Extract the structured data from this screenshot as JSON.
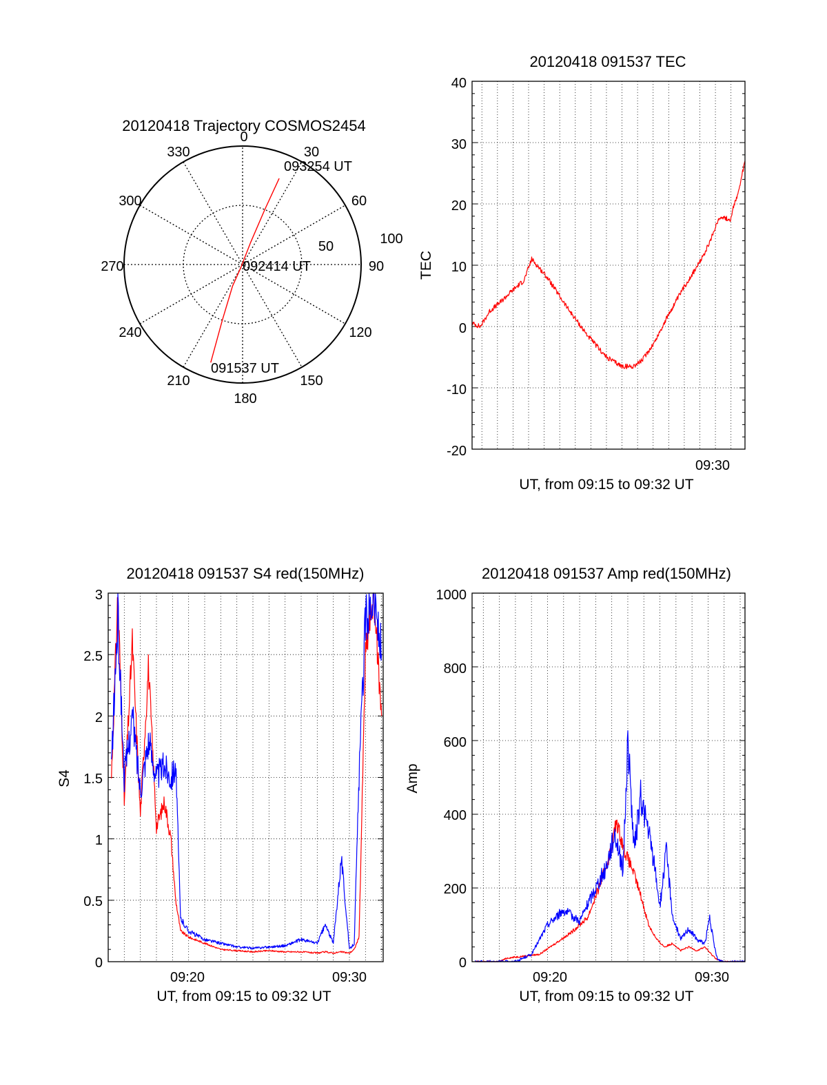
{
  "chart_data": [
    {
      "type": "polar",
      "title": "20120418 Trajectory COSMOS2454",
      "azimuth_labels": [
        "0",
        "30",
        "60",
        "90",
        "120",
        "150",
        "180",
        "210",
        "240",
        "270",
        "300",
        "330"
      ],
      "radial_labels": [
        "50",
        "100"
      ],
      "annotations": [
        "093254 UT",
        "092414 UT",
        "091537 UT"
      ],
      "trajectory_color": "#ff0000",
      "trajectory": [
        {
          "az": 198,
          "r": 87,
          "time": "091537 UT"
        },
        {
          "az": 200,
          "r": 50
        },
        {
          "az": 205,
          "r": 20
        },
        {
          "az": 210,
          "r": 3,
          "time": "092414 UT"
        },
        {
          "az": 20,
          "r": 20
        },
        {
          "az": 22,
          "r": 50
        },
        {
          "az": 23,
          "r": 79,
          "time": "093254 UT"
        }
      ]
    },
    {
      "type": "line",
      "title": "20120418 091537 TEC",
      "ylabel": "TEC",
      "xlabel": "UT, from 09:15 to 09:32 UT",
      "ylim": [
        -20,
        40
      ],
      "yticks": [
        "40",
        "30",
        "20",
        "10",
        "0",
        "-10",
        "-20"
      ],
      "xlim": [
        15.37,
        32.9
      ],
      "xtick_labels": [
        {
          "x": 30,
          "label": "09:30"
        }
      ],
      "series": [
        {
          "color": "#ff0000",
          "x": [
            15.4,
            15.9,
            16.5,
            17.2,
            18.0,
            18.7,
            19.2,
            20.2,
            21.5,
            22.8,
            24.0,
            25.0,
            25.7,
            26.3,
            27.1,
            28.0,
            29.0,
            30.0,
            30.6,
            30.9,
            31.1,
            31.4,
            31.8,
            32.0,
            32.2,
            32.5,
            32.9
          ],
          "y": [
            0.5,
            0.0,
            2.5,
            4.0,
            6.0,
            7.5,
            11.0,
            8.0,
            3.0,
            -1.5,
            -5.0,
            -6.5,
            -6.5,
            -5.5,
            -2.5,
            2.0,
            6.5,
            10.5,
            13.5,
            15.5,
            17.0,
            18.0,
            17.5,
            17.5,
            20.0,
            22.0,
            27.0
          ]
        }
      ]
    },
    {
      "type": "line",
      "title": "20120418 091537 S4 red(150MHz)",
      "ylabel": "S4",
      "xlabel": "UT, from 09:15 to 09:32 UT",
      "ylim": [
        0,
        3
      ],
      "yticks": [
        "3",
        "2.5",
        "2",
        "1.5",
        "1",
        "0.5",
        "0"
      ],
      "xlim": [
        15.0,
        32.1
      ],
      "xtick_labels": [
        {
          "x": 20,
          "label": "09:20"
        },
        {
          "x": 30,
          "label": "09:30"
        }
      ],
      "series": [
        {
          "color": "#ff0000",
          "x": [
            15.2,
            15.6,
            16.0,
            16.5,
            17.0,
            17.5,
            18.0,
            18.5,
            18.9,
            19.2,
            19.5,
            20.0,
            21.0,
            22.0,
            23.0,
            24.0,
            25.0,
            26.0,
            27.0,
            28.0,
            28.5,
            29.0,
            29.5,
            30.0,
            30.3,
            30.6,
            31.0,
            31.5,
            32.0
          ],
          "y": [
            1.5,
            3.0,
            1.3,
            2.6,
            1.2,
            2.4,
            1.1,
            1.3,
            1.0,
            0.5,
            0.25,
            0.2,
            0.15,
            0.1,
            0.09,
            0.08,
            0.09,
            0.08,
            0.08,
            0.07,
            0.08,
            0.07,
            0.08,
            0.07,
            0.1,
            0.2,
            2.5,
            3.0,
            2.0
          ]
        },
        {
          "color": "#0000ff",
          "x": [
            15.2,
            15.6,
            16.0,
            16.5,
            17.0,
            17.5,
            18.0,
            18.5,
            18.9,
            19.2,
            19.5,
            20.0,
            21.0,
            22.0,
            23.0,
            24.0,
            25.0,
            26.0,
            27.0,
            28.0,
            28.5,
            29.0,
            29.5,
            30.0,
            30.3,
            30.6,
            31.0,
            31.5,
            32.0
          ],
          "y": [
            1.6,
            2.8,
            1.5,
            2.0,
            1.4,
            1.8,
            1.5,
            1.6,
            1.5,
            1.6,
            0.35,
            0.25,
            0.18,
            0.15,
            0.12,
            0.11,
            0.12,
            0.13,
            0.18,
            0.15,
            0.3,
            0.15,
            0.85,
            0.1,
            0.15,
            1.5,
            2.8,
            3.0,
            2.5
          ]
        }
      ]
    },
    {
      "type": "line",
      "title": "20120418 091537 Amp red(150MHz)",
      "ylabel": "Amp",
      "xlabel": "UT, from 09:15 to 09:32 UT",
      "ylim": [
        0,
        1000
      ],
      "yticks": [
        "1000",
        "800",
        "600",
        "400",
        "200",
        "0"
      ],
      "xlim": [
        15.3,
        32.3
      ],
      "xtick_labels": [
        {
          "x": 20,
          "label": "09:20"
        },
        {
          "x": 30,
          "label": "09:30"
        }
      ],
      "series": [
        {
          "color": "#ff0000",
          "x": [
            15.5,
            17.0,
            17.5,
            18.5,
            19.5,
            20.5,
            21.5,
            22.5,
            23.2,
            23.8,
            24.3,
            24.8,
            25.3,
            25.8,
            26.3,
            26.8,
            27.3,
            27.8,
            28.3,
            28.8,
            29.3,
            29.8,
            30.2,
            30.6,
            31.0,
            32.3
          ],
          "y": [
            0,
            0,
            10,
            15,
            20,
            50,
            80,
            120,
            200,
            280,
            380,
            300,
            250,
            180,
            100,
            60,
            40,
            50,
            30,
            40,
            30,
            40,
            20,
            5,
            0,
            0
          ]
        },
        {
          "color": "#0000ff",
          "x": [
            15.5,
            18.0,
            19.0,
            19.5,
            20.0,
            21.0,
            22.0,
            23.0,
            23.6,
            24.2,
            24.7,
            25.0,
            25.4,
            25.8,
            26.3,
            26.7,
            27.0,
            27.4,
            27.8,
            28.3,
            28.8,
            29.3,
            29.8,
            30.1,
            30.4,
            30.6,
            31.0,
            32.3
          ],
          "y": [
            0,
            0,
            20,
            60,
            100,
            140,
            110,
            200,
            250,
            350,
            250,
            600,
            300,
            450,
            350,
            250,
            150,
            300,
            120,
            60,
            90,
            60,
            50,
            120,
            40,
            5,
            0,
            0
          ]
        }
      ]
    }
  ]
}
